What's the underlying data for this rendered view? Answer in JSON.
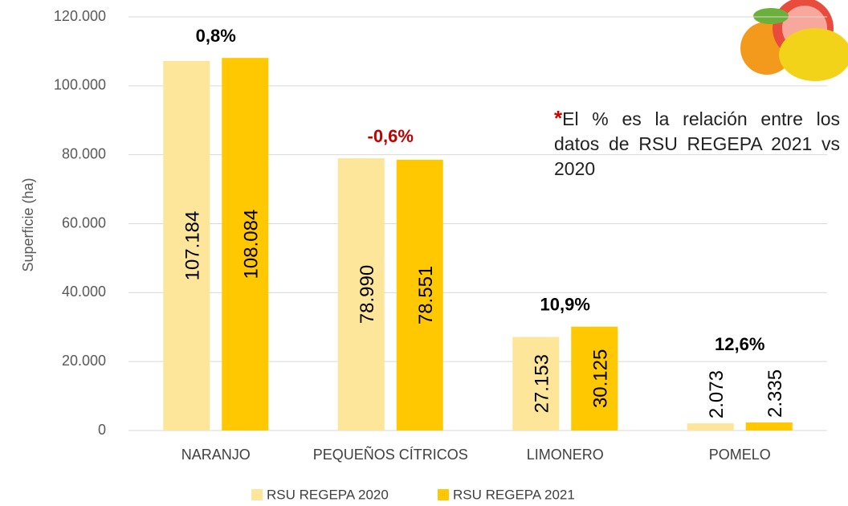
{
  "chart_data": {
    "type": "bar",
    "y_label": "Superficie (ha)",
    "categories": [
      "NARANJO",
      "PEQUEÑOS CÍTRICOS",
      "LIMONERO",
      "POMELO"
    ],
    "series": [
      {
        "name": "RSU REGEPA 2020",
        "color": "#fde59a",
        "values": [
          107184,
          78990,
          27153,
          2073
        ],
        "value_labels": [
          "107.184",
          "78.990",
          "27.153",
          "2.073"
        ]
      },
      {
        "name": "RSU REGEPA 2021",
        "color": "#ffc800",
        "values": [
          108084,
          78551,
          30125,
          2335
        ],
        "value_labels": [
          "108.084",
          "78.551",
          "30.125",
          "2.335"
        ]
      }
    ],
    "change_labels": [
      "0,8%",
      "-0,6%",
      "10,9%",
      "12,6%"
    ],
    "change_colors": [
      "#000000",
      "#c00000",
      "#000000",
      "#000000"
    ],
    "note": {
      "mark": "*",
      "text": "El % es la relación entre los datos de RSU REGEPA 2021 vs 2020"
    },
    "ylim": [
      0,
      120000
    ],
    "yticks": [
      0,
      {
        "value": 20000,
        "label": "20.000"
      },
      {
        "value": 40000,
        "label": "40.000"
      },
      {
        "value": 60000,
        "label": "60.000"
      },
      {
        "value": 80000,
        "label": "80.000"
      },
      {
        "value": 100000,
        "label": "100.000"
      },
      {
        "value": 120000,
        "label": "120.000"
      }
    ],
    "grid": true,
    "legend": "bottom"
  }
}
